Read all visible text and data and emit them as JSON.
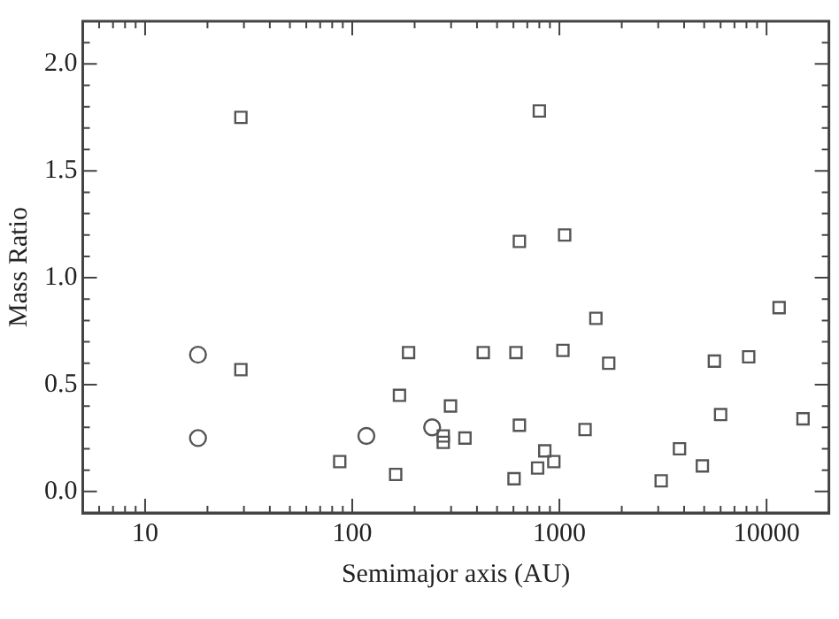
{
  "chart_data": {
    "type": "scatter",
    "xlabel": "Semimajor axis (AU)",
    "ylabel": "Mass Ratio",
    "log": "x",
    "grid": false,
    "xlim": [
      5,
      20000
    ],
    "ylim": [
      -0.1,
      2.2
    ],
    "xticks": [
      {
        "value": 5,
        "label": null
      },
      {
        "value": 6,
        "label": null
      },
      {
        "value": 7,
        "label": null
      },
      {
        "value": 8,
        "label": null
      },
      {
        "value": 9,
        "label": null
      },
      10,
      {
        "value": 20,
        "label": null
      },
      {
        "value": 30,
        "label": null
      },
      {
        "value": 40,
        "label": null
      },
      {
        "value": 50,
        "label": null
      },
      {
        "value": 60,
        "label": null
      },
      {
        "value": 70,
        "label": null
      },
      {
        "value": 80,
        "label": null
      },
      {
        "value": 90,
        "label": null
      },
      100,
      {
        "value": 200,
        "label": null
      },
      {
        "value": 300,
        "label": null
      },
      {
        "value": 400,
        "label": null
      },
      {
        "value": 500,
        "label": null
      },
      {
        "value": 600,
        "label": null
      },
      {
        "value": 700,
        "label": null
      },
      {
        "value": 800,
        "label": null
      },
      {
        "value": 900,
        "label": null
      },
      1000,
      {
        "value": 2000,
        "label": null
      },
      {
        "value": 3000,
        "label": null
      },
      {
        "value": 4000,
        "label": null
      },
      {
        "value": 5000,
        "label": null
      },
      {
        "value": 6000,
        "label": null
      },
      {
        "value": 7000,
        "label": null
      },
      {
        "value": 8000,
        "label": null
      },
      {
        "value": 9000,
        "label": null
      },
      10000,
      {
        "value": 20000,
        "label": null
      }
    ],
    "yticks": [
      {
        "value": 0,
        "label": "0.0"
      },
      {
        "value": 0.1,
        "label": null
      },
      {
        "value": 0.2,
        "label": null
      },
      {
        "value": 0.3,
        "label": null
      },
      {
        "value": 0.4,
        "label": null
      },
      {
        "value": 0.5,
        "label": "0.5"
      },
      {
        "value": 0.6,
        "label": null
      },
      {
        "value": 0.7,
        "label": null
      },
      {
        "value": 0.8,
        "label": null
      },
      {
        "value": 0.9,
        "label": null
      },
      {
        "value": 1,
        "label": "1.0"
      },
      {
        "value": 1.1,
        "label": null
      },
      {
        "value": 1.2,
        "label": null
      },
      {
        "value": 1.3,
        "label": null
      },
      {
        "value": 1.4,
        "label": null
      },
      {
        "value": 1.5,
        "label": "1.5"
      },
      {
        "value": 1.6,
        "label": null
      },
      {
        "value": 1.7,
        "label": null
      },
      {
        "value": 1.8,
        "label": null
      },
      {
        "value": 1.9,
        "label": null
      },
      {
        "value": 2,
        "label": "2.0"
      },
      {
        "value": 2.1,
        "label": null
      },
      {
        "value": 2.2,
        "label": null
      }
    ],
    "series": [
      {
        "color": "#555555",
        "marker": "circle",
        "x": [
          18,
          18,
          117,
          243
        ],
        "values": [
          0.64,
          0.25,
          0.26,
          0.3
        ]
      },
      {
        "color": "#555555",
        "marker": "square",
        "x": [
          29,
          29,
          87,
          162,
          169,
          187,
          298,
          275,
          275,
          350,
          429,
          617,
          641,
          604,
          641,
          800,
          785,
          850,
          940,
          1040,
          1060,
          1330,
          1500,
          1730,
          3100,
          3800,
          4900,
          5600,
          6000,
          8200,
          11500,
          15000
        ],
        "values": [
          1.75,
          0.57,
          0.14,
          0.08,
          0.45,
          0.65,
          0.4,
          0.26,
          0.23,
          0.25,
          0.65,
          0.65,
          0.31,
          0.06,
          1.17,
          1.78,
          0.11,
          0.19,
          0.14,
          0.66,
          1.2,
          0.29,
          0.81,
          0.6,
          0.05,
          0.2,
          0.12,
          0.61,
          0.36,
          0.63,
          0.86,
          0.34
        ]
      }
    ]
  }
}
